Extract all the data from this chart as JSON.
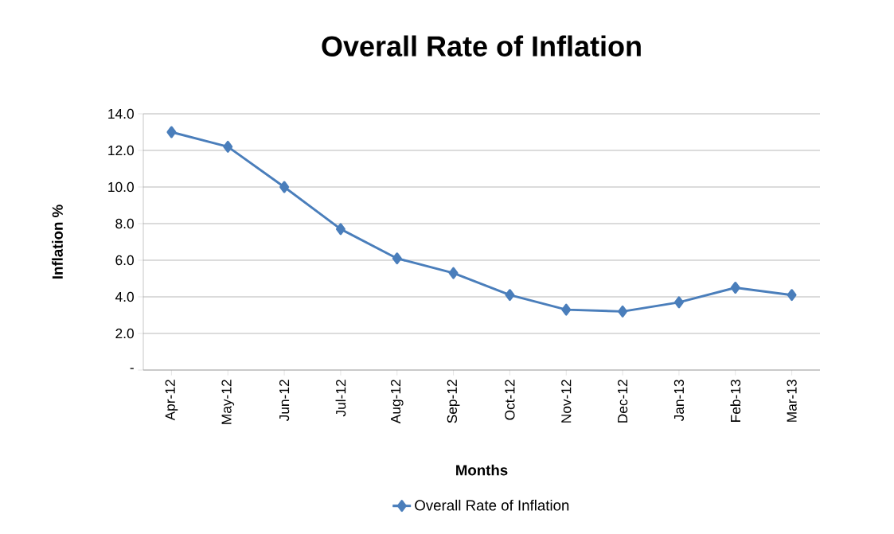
{
  "chart_data": {
    "type": "line",
    "title": "Overall Rate of Inflation",
    "xlabel": "Months",
    "ylabel": "Inflation %",
    "categories": [
      "Apr-12",
      "May-12",
      "Jun-12",
      "Jul-12",
      "Aug-12",
      "Sep-12",
      "Oct-12",
      "Nov-12",
      "Dec-12",
      "Jan-13",
      "Feb-13",
      "Mar-13"
    ],
    "series": [
      {
        "name": "Overall Rate of Inflation",
        "color": "#4a7ebb",
        "values": [
          13.0,
          12.2,
          10.0,
          7.7,
          6.1,
          5.3,
          4.1,
          3.3,
          3.2,
          3.7,
          4.5,
          4.1
        ]
      }
    ],
    "ylim": [
      0,
      14
    ],
    "yticks": [
      {
        "value": 0,
        "label": "-"
      },
      {
        "value": 2,
        "label": "2.0"
      },
      {
        "value": 4,
        "label": "4.0"
      },
      {
        "value": 6,
        "label": "6.0"
      },
      {
        "value": 8,
        "label": "8.0"
      },
      {
        "value": 10,
        "label": "10.0"
      },
      {
        "value": 12,
        "label": "12.0"
      },
      {
        "value": 14,
        "label": "14.0"
      }
    ],
    "grid": "y",
    "legend": "bottom",
    "marker": "diamond",
    "line_style": "solid"
  }
}
